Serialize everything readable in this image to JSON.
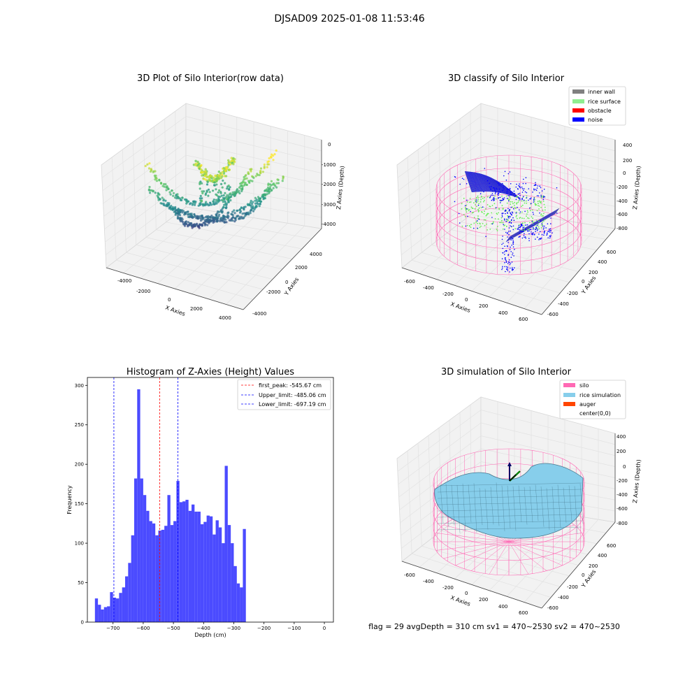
{
  "suptitle": "DJSAD09 2025-01-08 11:53:46",
  "footer": "flag = 29  avgDepth = 310 cm  sv1 = 470~2530  sv2 = 470~2530",
  "colors": {
    "viridis_dark": "#440154",
    "viridis_mid": "#21918c",
    "viridis_light": "#fde725",
    "inner_wall": "#808080",
    "rice_surface": "#90ee90",
    "obstacle": "#ff0000",
    "noise": "#0000ff",
    "silo": "#ff69b4",
    "rice_simulation": "#87ceeb",
    "auger": "#ff4500",
    "hist_bar": "#4b4bff",
    "first_peak_line": "#ff0000",
    "limit_line": "#0000ff"
  },
  "chart_data": [
    {
      "type": "scatter",
      "dimension": "3d",
      "title": "3D Plot of Silo Interior(row data)",
      "xlabel": "X Axies",
      "ylabel": "Y Axies",
      "zlabel": "Z Axies (Depth)",
      "x_ticks": [
        "-4000",
        "-2000",
        "0",
        "2000",
        "4000"
      ],
      "y_ticks": [
        "-4000",
        "-2000",
        "0",
        "2000",
        "4000"
      ],
      "z_ticks": [
        "0",
        "-1000",
        "-2000",
        "-3000",
        "-4000"
      ],
      "xlim": [
        -4500,
        4500
      ],
      "ylim": [
        -4500,
        4500
      ],
      "zlim": [
        -4500,
        0
      ],
      "colormap": "viridis",
      "grid": true
    },
    {
      "type": "scatter",
      "dimension": "3d",
      "title": "3D classify of Silo Interior",
      "xlabel": "X Axies",
      "ylabel": "Y Axies",
      "zlabel": "Z Axies (Depth)",
      "x_ticks": [
        "-600",
        "-400",
        "-200",
        "0",
        "200",
        "400",
        "600"
      ],
      "y_ticks": [
        "-600",
        "-400",
        "-200",
        "0",
        "200",
        "400",
        "600"
      ],
      "z_ticks": [
        "400",
        "200",
        "0",
        "-200",
        "-400",
        "-600",
        "-800"
      ],
      "xlim": [
        -700,
        700
      ],
      "ylim": [
        -700,
        700
      ],
      "zlim": [
        -950,
        450
      ],
      "legend": [
        "inner wall",
        "rice surface",
        "obstacle",
        "noise"
      ],
      "legend_position": "top-right",
      "grid": true
    },
    {
      "type": "bar",
      "title": "Histogram of Z-Axies (Height) Values",
      "xlabel": "Depth (cm)",
      "ylabel": "Frequency",
      "xlim": [
        -785,
        30
      ],
      "ylim": [
        0,
        310
      ],
      "x_ticks": [
        -700,
        -600,
        -500,
        -400,
        -300,
        -200,
        -100,
        0
      ],
      "x_tick_labels": [
        "−700",
        "−600",
        "−500",
        "−400",
        "−300",
        "−200",
        "−100",
        "0"
      ],
      "y_ticks": [
        0,
        50,
        100,
        150,
        200,
        250,
        300
      ],
      "bin_start": -760,
      "bin_width": 10,
      "values": [
        30,
        22,
        16,
        19,
        20,
        38,
        31,
        30,
        37,
        44,
        58,
        75,
        110,
        182,
        295,
        182,
        161,
        141,
        128,
        125,
        110,
        116,
        117,
        122,
        161,
        123,
        128,
        179,
        152,
        153,
        155,
        141,
        149,
        140,
        140,
        124,
        127,
        135,
        134,
        111,
        129,
        120,
        100,
        198,
        123,
        100,
        71,
        49,
        44,
        118
      ],
      "lines": [
        {
          "x": -545.67,
          "label": "first_peak: -545.67 cm",
          "color": "#ff0000"
        },
        {
          "x": -485.06,
          "label": "Upper_limit: -485.06 cm",
          "color": "#0000ff"
        },
        {
          "x": -697.19,
          "label": "Lower_limit: -697.19 cm",
          "color": "#0000ff"
        }
      ],
      "legend_position": "top-right",
      "grid": false
    },
    {
      "type": "surface",
      "dimension": "3d",
      "title": "3D simulation of Silo Interior",
      "xlabel": "X Axies",
      "ylabel": "Y Axies",
      "zlabel": "Z Axies (Depth)",
      "x_ticks": [
        "-600",
        "-400",
        "-200",
        "0",
        "200",
        "400",
        "600"
      ],
      "y_ticks": [
        "-600",
        "-400",
        "-200",
        "0",
        "200",
        "400",
        "600"
      ],
      "z_ticks": [
        "400",
        "200",
        "0",
        "-200",
        "-400",
        "-600",
        "-800"
      ],
      "xlim": [
        -700,
        700
      ],
      "ylim": [
        -700,
        700
      ],
      "zlim": [
        -950,
        450
      ],
      "legend": [
        "silo",
        "rice simulation",
        "auger",
        "center(0,0)"
      ],
      "legend_position": "top-right",
      "grid": true
    }
  ]
}
